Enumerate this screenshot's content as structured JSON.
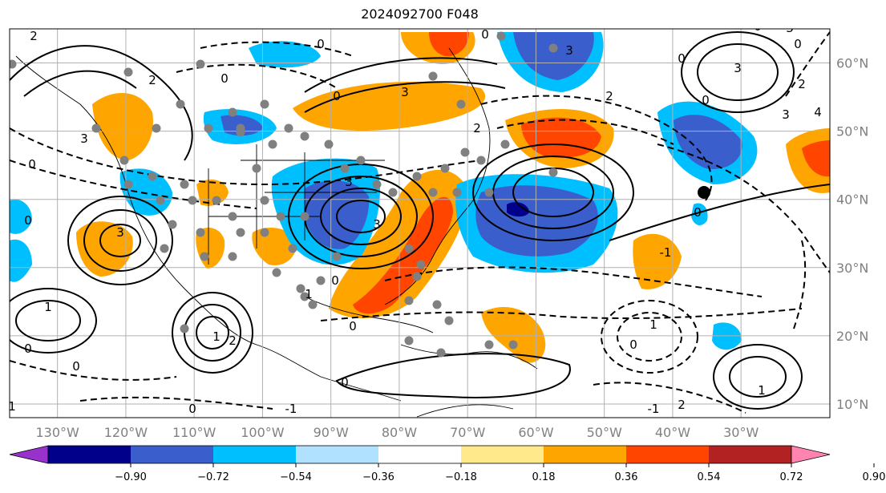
{
  "title": "2024092700 F048",
  "map": {
    "lon_labels": [
      "130°W",
      "120°W",
      "110°W",
      "100°W",
      "90°W",
      "80°W",
      "70°W",
      "60°W",
      "50°W",
      "40°W",
      "30°W"
    ],
    "lat_labels": [
      "60°N",
      "50°N",
      "40°N",
      "30°N",
      "20°N",
      "10°N"
    ],
    "lon_range": [
      -137,
      -17
    ],
    "lat_range": [
      8,
      65
    ],
    "grid": true,
    "label_color": "#808080",
    "contour_labels": [
      "2",
      "0",
      "3",
      "0",
      "2",
      "1",
      "3",
      "3",
      "2",
      "0",
      "3",
      "3",
      "0",
      "2",
      "3",
      "0",
      "3",
      "4",
      "0",
      "0",
      "0",
      "-1",
      "1",
      "0",
      "0",
      "1",
      "0",
      "2",
      "0",
      "-1",
      "1",
      "2",
      "2",
      "0",
      "0",
      "0",
      "1",
      "0",
      "-1",
      "0",
      "3",
      "0",
      "1",
      "3"
    ]
  },
  "colorbar": {
    "ticks": [
      "−0.90",
      "−0.72",
      "−0.54",
      "−0.36",
      "−0.18",
      "0.18",
      "0.36",
      "0.54",
      "0.72",
      "0.90"
    ],
    "colors": [
      "#9932cc",
      "#00008b",
      "#3a5fcd",
      "#00bfff",
      "#b0e2ff",
      "#ffffff",
      "#ffe98a",
      "#ffa500",
      "#ff4500",
      "#b22222",
      "#ff85b0"
    ],
    "extend": "both"
  }
}
